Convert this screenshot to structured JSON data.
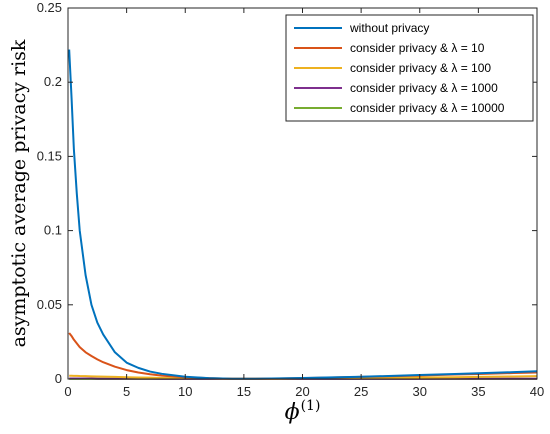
{
  "chart_data": {
    "type": "line",
    "title": "",
    "xlabel": "ϕ(1)",
    "ylabel": "asymptotic average privacy risk",
    "xlim": [
      0,
      40
    ],
    "ylim": [
      0,
      0.25
    ],
    "xticks": [
      "0",
      "5",
      "10",
      "15",
      "20",
      "25",
      "30",
      "35",
      "40"
    ],
    "yticks": [
      "0",
      "0.05",
      "0.1",
      "0.15",
      "0.2",
      "0.25"
    ],
    "grid": false,
    "legend_position": "top-right",
    "x": [
      0.1,
      0.3,
      0.5,
      0.75,
      1,
      1.5,
      2,
      2.5,
      3,
      4,
      5,
      6,
      7,
      8,
      10,
      12,
      14,
      16,
      18,
      20,
      22,
      25,
      28,
      30,
      33,
      35,
      38,
      40
    ],
    "series": [
      {
        "name": "without privacy",
        "color": "#0072BD",
        "values": [
          0.222,
          0.19,
          0.155,
          0.125,
          0.1,
          0.07,
          0.05,
          0.038,
          0.03,
          0.018,
          0.011,
          0.0075,
          0.005,
          0.0035,
          0.0015,
          0.0006,
          0.0002,
          0.0002,
          0.0004,
          0.0007,
          0.001,
          0.0015,
          0.0022,
          0.0027,
          0.0034,
          0.0039,
          0.0046,
          0.0052
        ]
      },
      {
        "name": "consider privacy & λ = 10",
        "color": "#D95319",
        "values": [
          0.031,
          0.029,
          0.0265,
          0.024,
          0.0215,
          0.018,
          0.0155,
          0.0132,
          0.0113,
          0.0083,
          0.006,
          0.0044,
          0.0032,
          0.0023,
          0.0012,
          0.0006,
          0.0002,
          0.0002,
          0.0003,
          0.0006,
          0.0009,
          0.0014,
          0.0019,
          0.0024,
          0.003,
          0.0034,
          0.004,
          0.0044
        ]
      },
      {
        "name": "consider privacy & λ = 100",
        "color": "#EDB120",
        "values": [
          0.0022,
          0.0022,
          0.0021,
          0.0021,
          0.002,
          0.0019,
          0.0018,
          0.0017,
          0.0016,
          0.0014,
          0.0012,
          0.001,
          0.0009,
          0.0007,
          0.0005,
          0.0003,
          0.0002,
          0.0002,
          0.0002,
          0.0003,
          0.0004,
          0.0006,
          0.0008,
          0.001,
          0.0012,
          0.0014,
          0.0017,
          0.0019
        ]
      },
      {
        "name": "consider privacy & λ = 1000",
        "color": "#7E2F8E",
        "values": [
          0.0003,
          0.0003,
          0.0003,
          0.0003,
          0.0003,
          0.0003,
          0.0003,
          0.0002,
          0.0002,
          0.0002,
          0.0002,
          0.0002,
          0.0002,
          0.0001,
          0.0001,
          0.0001,
          0.0001,
          0.0001,
          0.0001,
          0.0001,
          0.0001,
          0.0001,
          0.0001,
          0.0001,
          0.0002,
          0.0002,
          0.0002,
          0.0002
        ]
      },
      {
        "name": "consider privacy & λ = 10000",
        "color": "#77AC30",
        "values": [
          0.0001,
          0.0001,
          0.0001,
          0.0001,
          0.0001,
          0.0001,
          0.0001,
          0.0001,
          0.0001,
          0.0001,
          0.0001,
          0.0001,
          0.0001,
          0.0001,
          0.0001,
          0.0001,
          0.0001,
          0.0001,
          0.0001,
          0.0001,
          0.0001,
          0.0001,
          0.0001,
          0.0001,
          0.0001,
          0.0001,
          0.0001,
          0.0001
        ]
      }
    ]
  }
}
